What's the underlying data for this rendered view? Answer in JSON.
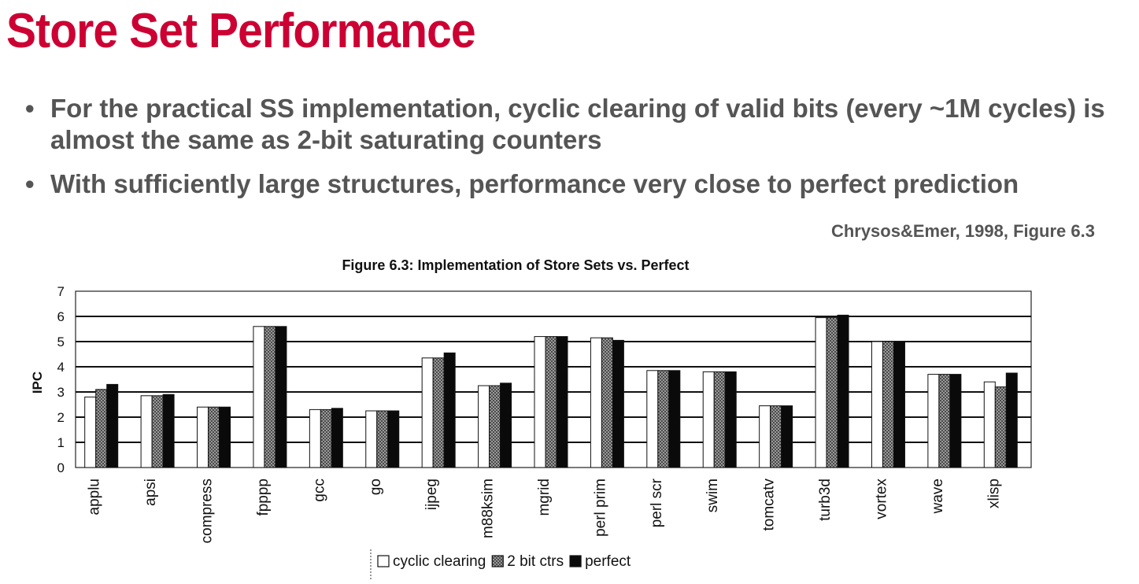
{
  "slide": {
    "title": "Store Set Performance",
    "bullets": [
      "For the practical SS implementation, cyclic clearing of valid bits (every ~1M cycles) is almost the same as 2-bit saturating counters",
      "With sufficiently large structures, performance very close to perfect prediction"
    ],
    "citation": "Chrysos&Emer, 1998, Figure 6.3"
  },
  "colors": {
    "title": "#cc0033",
    "text": "#555555",
    "cyclic_clearing": "#ffffff",
    "two_bit_ctrs": "#7a7a7a",
    "perfect": "#0a0a0a"
  },
  "chart_data": {
    "type": "bar",
    "title": "Figure 6.3: Implementation of Store Sets vs. Perfect",
    "xlabel": "",
    "ylabel": "IPC",
    "ylim": [
      0,
      7
    ],
    "yticks": [
      0,
      1,
      2,
      3,
      4,
      5,
      6,
      7
    ],
    "grid": true,
    "legend_position": "bottom",
    "categories": [
      "applu",
      "apsi",
      "compress",
      "fpppp",
      "gcc",
      "go",
      "ijpeg",
      "m88ksim",
      "mgrid",
      "perl prim",
      "perl scr",
      "swim",
      "tomcatv",
      "turb3d",
      "vortex",
      "wave",
      "xlisp"
    ],
    "series": [
      {
        "name": "cyclic clearing",
        "values": [
          2.8,
          2.85,
          2.4,
          5.6,
          2.3,
          2.25,
          4.35,
          3.25,
          5.2,
          5.15,
          3.85,
          3.8,
          2.45,
          5.95,
          5.0,
          3.7,
          3.4
        ]
      },
      {
        "name": "2 bit ctrs",
        "values": [
          3.1,
          2.85,
          2.4,
          5.6,
          2.3,
          2.25,
          4.35,
          3.25,
          5.2,
          5.15,
          3.85,
          3.8,
          2.45,
          5.95,
          5.0,
          3.7,
          3.2
        ]
      },
      {
        "name": "perfect",
        "values": [
          3.3,
          2.9,
          2.4,
          5.6,
          2.35,
          2.25,
          4.55,
          3.35,
          5.2,
          5.05,
          3.85,
          3.8,
          2.45,
          6.05,
          5.0,
          3.7,
          3.75
        ]
      }
    ]
  }
}
